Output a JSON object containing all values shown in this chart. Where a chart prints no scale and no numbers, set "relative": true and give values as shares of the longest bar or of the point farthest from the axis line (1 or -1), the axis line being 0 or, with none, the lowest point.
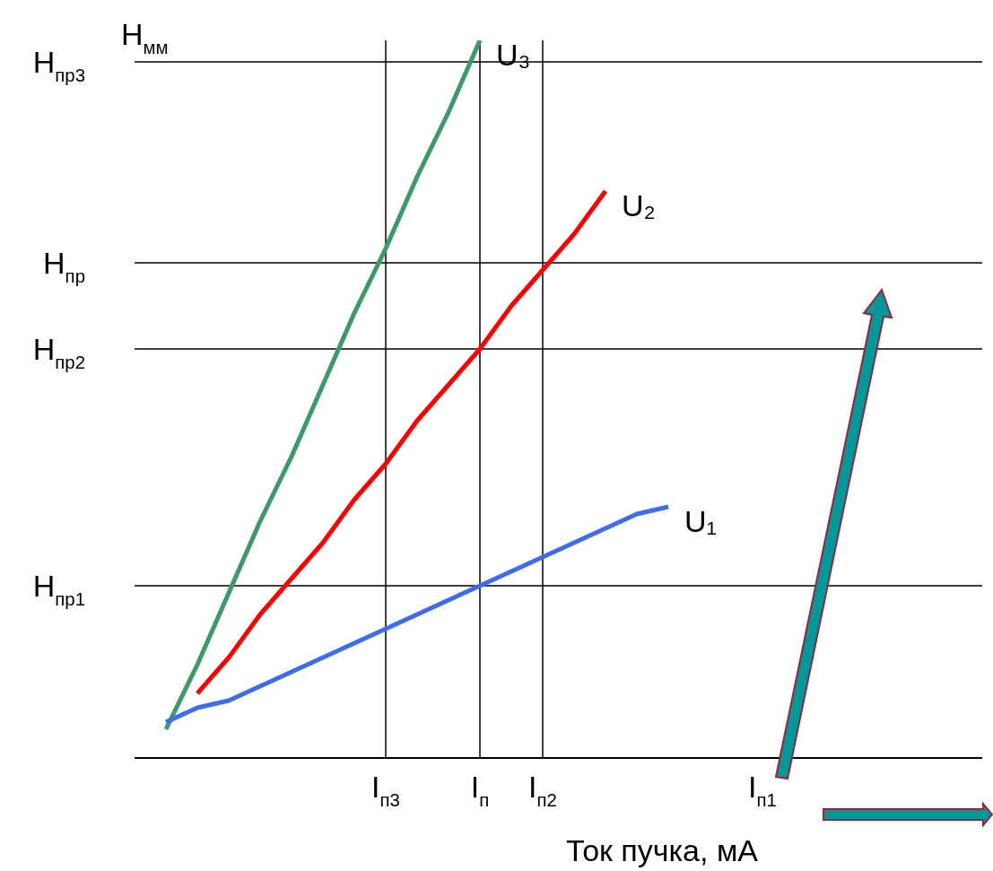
{
  "chart_data": {
    "type": "line",
    "relative": true,
    "ylabel": "H$_{мм}$",
    "xlabel": "Ток пучка, мА",
    "categories": [
      null,
      null,
      null,
      null,
      null,
      null,
      null,
      null,
      "I$_{п3}$",
      null,
      null,
      "I$_{п}$",
      null,
      "I$_{п2}$",
      null,
      null,
      null,
      null,
      null,
      null,
      "I$_{п1}$",
      null,
      null,
      null,
      null,
      null,
      null,
      null
    ],
    "series": [
      {
        "name": "U₃",
        "color": "#3a9a68",
        "values": [
          null,
          0.04,
          0.13,
          0.23,
          0.33,
          0.42,
          0.52,
          0.62,
          0.71,
          0.81,
          0.9,
          1,
          null,
          null,
          null,
          null,
          null,
          null,
          null,
          null,
          null,
          null,
          null,
          null,
          null,
          null,
          null,
          null
        ]
      },
      {
        "name": "U₂",
        "color": "#ff0000",
        "values": [
          null,
          null,
          0.09,
          0.14,
          0.2,
          0.25,
          0.3,
          0.36,
          0.41,
          0.47,
          0.52,
          0.57,
          0.63,
          0.68,
          0.73,
          0.79,
          null,
          null,
          null,
          null,
          null,
          null,
          null,
          null,
          null,
          null,
          null,
          null
        ]
      },
      {
        "name": "U₁",
        "color": "#3d6cf0",
        "values": [
          null,
          0.05,
          0.07,
          0.08,
          0.1,
          0.12,
          0.14,
          0.16,
          0.18,
          0.2,
          0.22,
          0.24,
          0.26,
          0.28,
          0.3,
          0.32,
          0.34,
          0.35,
          null,
          null,
          null,
          null,
          null,
          null,
          null,
          null,
          null,
          null
        ]
      }
    ],
    "ref_lines": [
      {
        "axis": "y",
        "value": 0.97,
        "label": "H$_{пр3}$",
        "color": "#000000"
      },
      {
        "axis": "y",
        "value": 0.69,
        "label": "H$_{пр}$",
        "color": "#000000"
      },
      {
        "axis": "y",
        "value": 0.57,
        "label": "H$_{пр2}$",
        "color": "#000000"
      },
      {
        "axis": "y",
        "value": 0.24,
        "label": "H$_{пр1}$",
        "color": "#000000"
      },
      {
        "axis": "x",
        "value": "I$_{п3}$",
        "color": "#000000"
      },
      {
        "axis": "x",
        "value": "I$_{п}$",
        "color": "#000000"
      },
      {
        "axis": "x",
        "value": "I$_{п2}$",
        "color": "#000000"
      }
    ],
    "grid": false,
    "legend": false,
    "marker": "none",
    "line_style": "solid"
  }
}
